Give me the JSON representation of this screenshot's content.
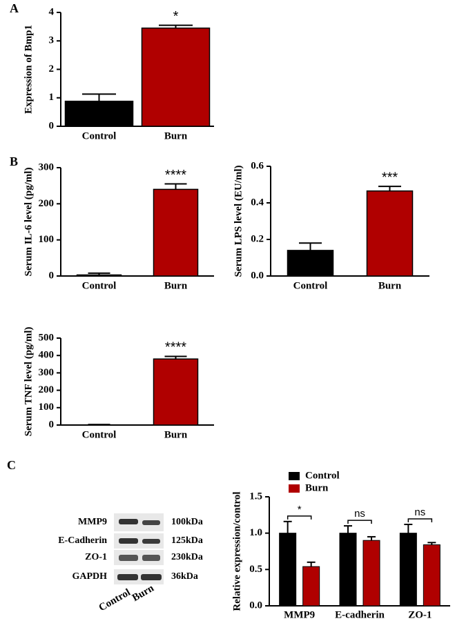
{
  "panels": [
    "A",
    "B",
    "C"
  ],
  "blot": {
    "proteins": [
      {
        "name": "MMP9",
        "size": "100kDa"
      },
      {
        "name": "E-Cadherin",
        "size": "125kDa"
      },
      {
        "name": "ZO-1",
        "size": "230kDa"
      },
      {
        "name": "GAPDH",
        "size": "36kDa"
      }
    ],
    "lanes": [
      "Control",
      "Burn"
    ]
  },
  "chart_data": [
    {
      "type": "bar",
      "ylabel": "Expression of Bmp1",
      "categories": [
        "Control",
        "Burn"
      ],
      "values": [
        0.88,
        3.45
      ],
      "errors": [
        0.25,
        0.1
      ],
      "colors": [
        "#000000",
        "#b00000"
      ],
      "significance": [
        null,
        "*"
      ],
      "ylim": [
        0,
        4
      ],
      "yticks": [
        0,
        1,
        2,
        3,
        4
      ]
    },
    {
      "type": "bar",
      "ylabel": "Serum IL-6 level (pg/ml)",
      "categories": [
        "Control",
        "Burn"
      ],
      "values": [
        3,
        240
      ],
      "errors": [
        5,
        15
      ],
      "colors": [
        "#000000",
        "#b00000"
      ],
      "significance": [
        null,
        "****"
      ],
      "ylim": [
        0,
        300
      ],
      "yticks": [
        0,
        100,
        200,
        300
      ]
    },
    {
      "type": "bar",
      "ylabel": "Serum LPS level (EU/ml)",
      "categories": [
        "Control",
        "Burn"
      ],
      "values": [
        0.14,
        0.465
      ],
      "errors": [
        0.04,
        0.025
      ],
      "colors": [
        "#000000",
        "#b00000"
      ],
      "significance": [
        null,
        "***"
      ],
      "ylim": [
        0,
        0.6
      ],
      "yticks": [
        {
          "value": 0,
          "label": "0.0"
        },
        0.2,
        0.4,
        0.6
      ]
    },
    {
      "type": "bar",
      "ylabel": "Serum TNF level (pg/ml)",
      "categories": [
        "Control",
        "Burn"
      ],
      "values": [
        1,
        380
      ],
      "errors": [
        2,
        15
      ],
      "colors": [
        "#000000",
        "#b00000"
      ],
      "significance": [
        null,
        "****"
      ],
      "ylim": [
        0,
        500
      ],
      "yticks": [
        0,
        100,
        200,
        300,
        400,
        500
      ]
    },
    {
      "type": "grouped-bar",
      "ylabel": "Relative expression/control",
      "categories": [
        "MMP9",
        "E-cadherin",
        "ZO-1"
      ],
      "series": [
        {
          "name": "Control",
          "color": "#000000",
          "values": [
            1.0,
            1.0,
            1.0
          ],
          "errors": [
            0.16,
            0.1,
            0.12
          ]
        },
        {
          "name": "Burn",
          "color": "#b00000",
          "values": [
            0.54,
            0.9,
            0.84
          ],
          "errors": [
            0.06,
            0.05,
            0.03
          ]
        }
      ],
      "significance": [
        "*",
        "ns",
        "ns"
      ],
      "legend": "top-left",
      "ylim": [
        0,
        1.5
      ],
      "yticks": [
        {
          "value": 0,
          "label": "0.0"
        },
        {
          "value": 0.5,
          "label": "0.5"
        },
        {
          "value": 1,
          "label": "1.0"
        },
        {
          "value": 1.5,
          "label": "1.5"
        }
      ]
    }
  ]
}
